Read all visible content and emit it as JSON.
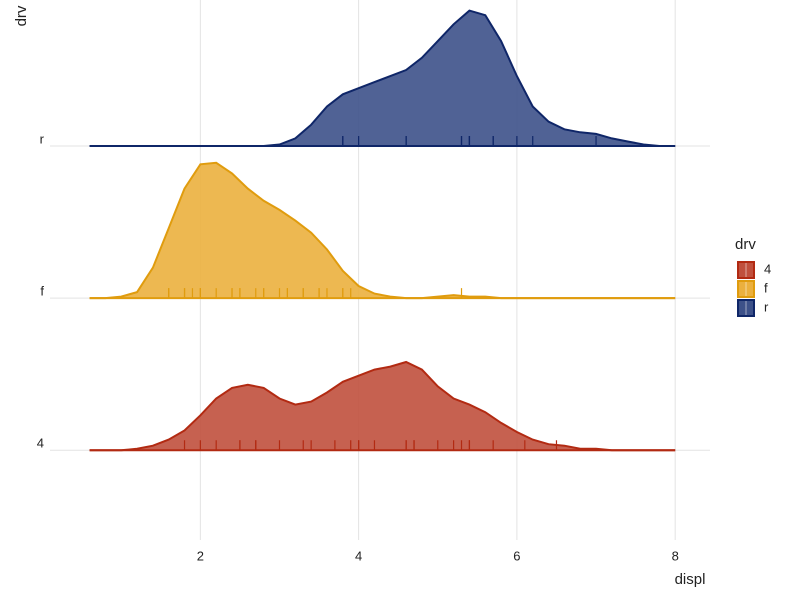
{
  "chart_data": {
    "type": "ridgeline",
    "x_label": "displ",
    "y_label": "drv",
    "legend_title": "drv",
    "categories": [
      "4",
      "f",
      "r"
    ],
    "xlim": [
      0.1,
      8.44
    ],
    "xticks": [
      2,
      4,
      6,
      8
    ],
    "ylim": [
      -0.59,
      2.96
    ],
    "grid": true,
    "legend_position": "right",
    "density_x": [
      0.6,
      0.8,
      1.0,
      1.2,
      1.4,
      1.6,
      1.8,
      2.0,
      2.2,
      2.4,
      2.6,
      2.8,
      3.0,
      3.2,
      3.4,
      3.6,
      3.8,
      4.0,
      4.2,
      4.4,
      4.6,
      4.8,
      5.0,
      5.2,
      5.4,
      5.6,
      5.8,
      6.0,
      6.2,
      6.4,
      6.6,
      6.8,
      7.0,
      7.2,
      7.4,
      7.6,
      7.8,
      8.0
    ],
    "series": [
      {
        "name": "4",
        "color": "#b22a12",
        "fill": "#c0503d",
        "density": [
          0,
          0,
          0,
          0.01,
          0.03,
          0.07,
          0.13,
          0.23,
          0.34,
          0.41,
          0.43,
          0.41,
          0.34,
          0.3,
          0.32,
          0.38,
          0.45,
          0.49,
          0.53,
          0.55,
          0.58,
          0.53,
          0.42,
          0.34,
          0.3,
          0.25,
          0.18,
          0.12,
          0.07,
          0.04,
          0.03,
          0.01,
          0.01,
          0,
          0,
          0,
          0,
          0
        ],
        "rug": [
          1.8,
          2.0,
          2.2,
          2.5,
          2.5,
          2.7,
          2.7,
          3.0,
          3.3,
          3.4,
          3.7,
          3.9,
          4.0,
          4.0,
          4.2,
          4.6,
          4.6,
          4.7,
          4.7,
          5.0,
          5.2,
          5.3,
          5.4,
          5.4,
          5.7,
          6.1,
          6.5
        ]
      },
      {
        "name": "f",
        "color": "#e09c0e",
        "fill": "#ebb03e",
        "density": [
          0,
          0,
          0.01,
          0.04,
          0.2,
          0.46,
          0.72,
          0.88,
          0.89,
          0.82,
          0.72,
          0.64,
          0.58,
          0.51,
          0.43,
          0.32,
          0.18,
          0.08,
          0.03,
          0.01,
          0,
          0,
          0.01,
          0.02,
          0.01,
          0.01,
          0,
          0,
          0,
          0,
          0,
          0,
          0,
          0,
          0,
          0,
          0,
          0
        ],
        "rug": [
          1.6,
          1.6,
          1.8,
          1.8,
          1.9,
          2.0,
          2.0,
          2.2,
          2.4,
          2.4,
          2.5,
          2.5,
          2.7,
          2.8,
          2.8,
          3.0,
          3.1,
          3.1,
          3.3,
          3.3,
          3.5,
          3.5,
          3.6,
          3.8,
          3.8,
          3.9,
          5.3
        ]
      },
      {
        "name": "r",
        "color": "#0f2668",
        "fill": "#3d5189",
        "density": [
          0,
          0,
          0,
          0,
          0,
          0,
          0,
          0,
          0,
          0,
          0,
          0,
          0.01,
          0.05,
          0.14,
          0.26,
          0.34,
          0.38,
          0.42,
          0.46,
          0.5,
          0.58,
          0.69,
          0.8,
          0.89,
          0.86,
          0.69,
          0.46,
          0.26,
          0.16,
          0.11,
          0.09,
          0.08,
          0.05,
          0.03,
          0.01,
          0,
          0
        ],
        "rug": [
          3.8,
          3.8,
          4.0,
          4.6,
          4.6,
          5.3,
          5.3,
          5.4,
          5.4,
          5.4,
          5.7,
          5.7,
          6.0,
          6.2,
          7.0
        ]
      }
    ]
  }
}
